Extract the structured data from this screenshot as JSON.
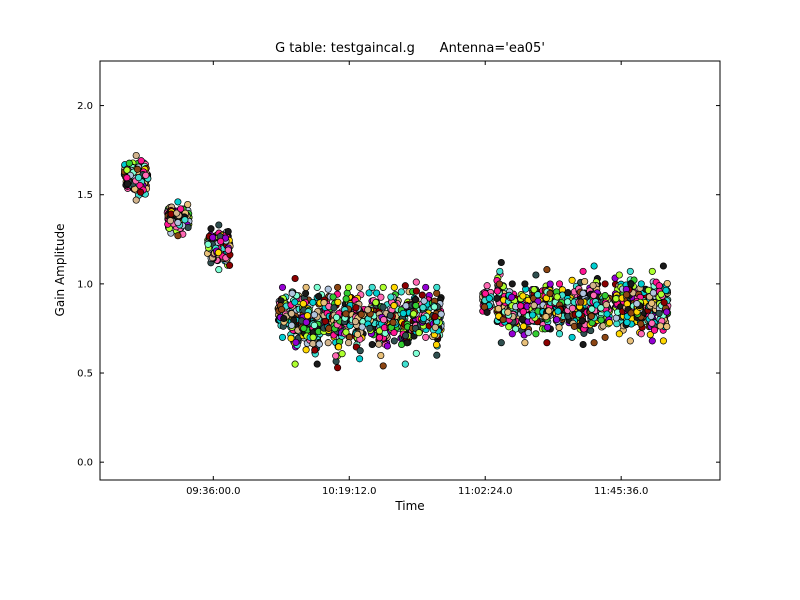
{
  "chart_data": {
    "type": "scatter",
    "title": "G table: testgaincal.g      Antenna='ea05'",
    "xlabel": "Time",
    "ylabel": "Gain Amplitude",
    "xlim": [
      "09:00:00",
      "12:17:00"
    ],
    "ylim": [
      -0.1,
      2.25
    ],
    "x_ticks": [
      "09:36:00.0",
      "10:19:12.0",
      "11:02:24.0",
      "11:45:36.0"
    ],
    "y_ticks": [
      "0.0",
      "0.5",
      "1.0",
      "1.5",
      "2.0"
    ],
    "grid": false,
    "legend": "none",
    "groups": [
      {
        "x": "09:08:00",
        "x_end": "09:15:00",
        "ymin": 1.47,
        "ymax": 1.72,
        "mean": 1.6
      },
      {
        "x": "09:21:30",
        "x_end": "09:28:00",
        "ymin": 1.27,
        "ymax": 1.46,
        "mean": 1.37
      },
      {
        "x": "09:34:30",
        "x_end": "09:41:00",
        "ymin": 1.08,
        "ymax": 1.33,
        "mean": 1.2
      },
      {
        "x": "09:58:00",
        "ymin": 0.7,
        "ymax": 0.98,
        "mean": 0.85
      },
      {
        "x": "10:02:00",
        "ymin": 0.55,
        "ymax": 1.03,
        "mean": 0.83
      },
      {
        "x": "10:05:30",
        "ymin": 0.63,
        "ymax": 0.98,
        "mean": 0.83
      },
      {
        "x": "10:09:00",
        "ymin": 0.55,
        "ymax": 0.98,
        "mean": 0.86
      },
      {
        "x": "10:12:30",
        "ymin": 0.67,
        "ymax": 0.97,
        "mean": 0.85
      },
      {
        "x": "10:15:30",
        "ymin": 0.53,
        "ymax": 0.98,
        "mean": 0.82
      },
      {
        "x": "10:19:00",
        "ymin": 0.67,
        "ymax": 0.98,
        "mean": 0.86
      },
      {
        "x": "10:22:30",
        "ymin": 0.58,
        "ymax": 0.98,
        "mean": 0.82
      },
      {
        "x": "10:26:30",
        "ymin": 0.66,
        "ymax": 0.98,
        "mean": 0.85
      },
      {
        "x": "10:30:00",
        "ymin": 0.54,
        "ymax": 0.98,
        "mean": 0.82
      },
      {
        "x": "10:33:30",
        "ymin": 0.68,
        "ymax": 0.98,
        "mean": 0.85
      },
      {
        "x": "10:37:00",
        "ymin": 0.55,
        "ymax": 0.99,
        "mean": 0.84
      },
      {
        "x": "10:40:30",
        "ymin": 0.61,
        "ymax": 1.01,
        "mean": 0.86
      },
      {
        "x": "10:43:30",
        "ymin": 0.7,
        "ymax": 0.98,
        "mean": 0.87
      },
      {
        "x": "10:47:00",
        "ymin": 0.6,
        "ymax": 0.98,
        "mean": 0.84
      },
      {
        "x": "11:03:00",
        "ymin": 0.84,
        "ymax": 0.99,
        "mean": 0.92
      },
      {
        "x": "11:07:30",
        "ymin": 0.67,
        "ymax": 1.12,
        "mean": 0.9
      },
      {
        "x": "11:11:00",
        "ymin": 0.72,
        "ymax": 1.0,
        "mean": 0.9
      },
      {
        "x": "11:15:00",
        "ymin": 0.67,
        "ymax": 1.0,
        "mean": 0.89
      },
      {
        "x": "11:18:30",
        "ymin": 0.72,
        "ymax": 1.05,
        "mean": 0.9
      },
      {
        "x": "11:22:00",
        "ymin": 0.67,
        "ymax": 1.08,
        "mean": 0.9
      },
      {
        "x": "11:26:00",
        "ymin": 0.72,
        "ymax": 1.0,
        "mean": 0.9
      },
      {
        "x": "11:30:00",
        "ymin": 0.7,
        "ymax": 1.02,
        "mean": 0.9
      },
      {
        "x": "11:33:30",
        "ymin": 0.66,
        "ymax": 1.07,
        "mean": 0.9
      },
      {
        "x": "11:37:00",
        "ymin": 0.67,
        "ymax": 1.1,
        "mean": 0.9
      },
      {
        "x": "11:40:30",
        "ymin": 0.7,
        "ymax": 1.0,
        "mean": 0.88
      },
      {
        "x": "11:45:00",
        "ymin": 0.72,
        "ymax": 1.05,
        "mean": 0.9
      },
      {
        "x": "11:48:30",
        "ymin": 0.68,
        "ymax": 1.07,
        "mean": 0.9
      },
      {
        "x": "11:52:00",
        "ymin": 0.72,
        "ymax": 1.0,
        "mean": 0.88
      },
      {
        "x": "11:55:30",
        "ymin": 0.68,
        "ymax": 1.07,
        "mean": 0.88
      },
      {
        "x": "11:59:00",
        "ymin": 0.68,
        "ymax": 1.1,
        "mean": 0.88
      }
    ],
    "marker_colors": [
      "#1a1a1a",
      "#e8c07a",
      "#40e0d0",
      "#7fffd4",
      "#ff1493",
      "#9400d3",
      "#32cd32",
      "#adff2f",
      "#8b0000",
      "#ffd700",
      "#2f4f4f",
      "#b0c4de",
      "#ff69b4",
      "#00ced1",
      "#8b4513",
      "#d2b48c"
    ]
  }
}
